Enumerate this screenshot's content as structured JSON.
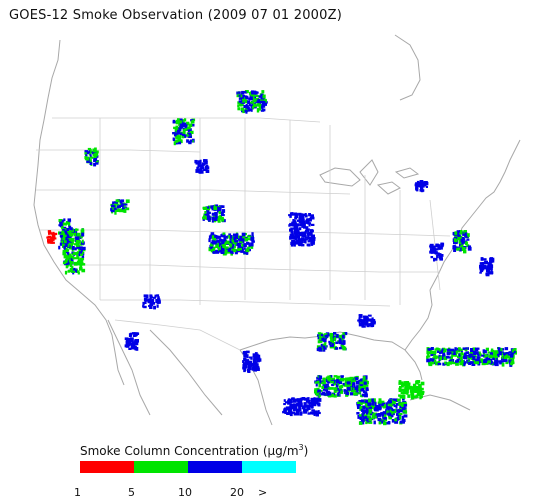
{
  "title": "GOES-12 Smoke Observation (2009 07 01  2000Z)",
  "legend": {
    "title_prefix": "Smoke Column Concentration (",
    "unit_mu": "μg/m",
    "unit_exp": "3",
    "title_suffix": ")",
    "bins": [
      {
        "color": "#ff0000",
        "from": 1,
        "to": 5
      },
      {
        "color": "#00e400",
        "from": 5,
        "to": 10
      },
      {
        "color": "#0000e6",
        "from": 10,
        "to": 20
      },
      {
        "color": "#00ffff",
        "from": 20,
        "to": null
      }
    ],
    "tick_labels": [
      "1",
      "5",
      "10",
      "20",
      ">"
    ]
  },
  "colors": {
    "coast": "#a8a8a8",
    "borders": "#c8c8c8",
    "low": "#ff0000",
    "medium": "#00e400",
    "high": "#0000e6",
    "very_high": "#00ffff"
  }
}
